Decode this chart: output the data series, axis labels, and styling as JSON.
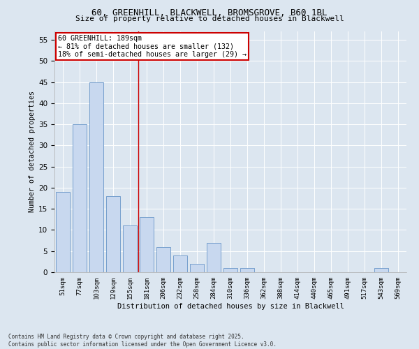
{
  "title_line1": "60, GREENHILL, BLACKWELL, BROMSGROVE, B60 1BL",
  "title_line2": "Size of property relative to detached houses in Blackwell",
  "xlabel": "Distribution of detached houses by size in Blackwell",
  "ylabel": "Number of detached properties",
  "footer_line1": "Contains HM Land Registry data © Crown copyright and database right 2025.",
  "footer_line2": "Contains public sector information licensed under the Open Government Licence v3.0.",
  "categories": [
    "51sqm",
    "77sqm",
    "103sqm",
    "129sqm",
    "155sqm",
    "181sqm",
    "206sqm",
    "232sqm",
    "258sqm",
    "284sqm",
    "310sqm",
    "336sqm",
    "362sqm",
    "388sqm",
    "414sqm",
    "440sqm",
    "465sqm",
    "491sqm",
    "517sqm",
    "543sqm",
    "569sqm"
  ],
  "values": [
    19,
    35,
    45,
    18,
    11,
    13,
    6,
    4,
    2,
    7,
    1,
    1,
    0,
    0,
    0,
    0,
    0,
    0,
    0,
    1,
    0
  ],
  "bar_color": "#c8d8ef",
  "bar_edge_color": "#6896c8",
  "background_color": "#dce6f0",
  "grid_color": "#ffffff",
  "property_line_x": 4.5,
  "property_line_label": "60 GREENHILL: 189sqm",
  "annotation_line2": "← 81% of detached houses are smaller (132)",
  "annotation_line3": "18% of semi-detached houses are larger (29) →",
  "annotation_box_color": "#ffffff",
  "annotation_border_color": "#cc0000",
  "vline_color": "#cc0000",
  "ylim_max": 57,
  "yticks": [
    0,
    5,
    10,
    15,
    20,
    25,
    30,
    35,
    40,
    45,
    50,
    55
  ]
}
